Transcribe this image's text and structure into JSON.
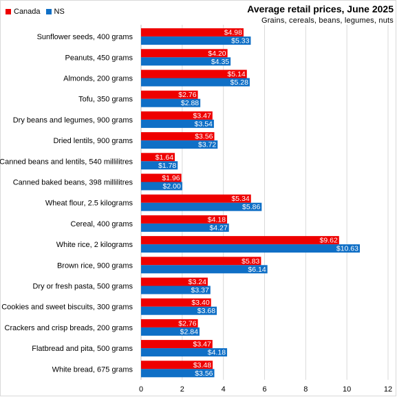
{
  "chart_data": {
    "type": "bar",
    "orientation": "horizontal",
    "title": "Average retail prices, June 2025",
    "subtitle": "Grains, cereals, beans, legumes, nuts",
    "categories": [
      "Sunflower seeds, 400 grams",
      "Peanuts, 450 grams",
      "Almonds, 200 grams",
      "Tofu, 350 grams",
      "Dry beans and legumes, 900 grams",
      "Dried lentils, 900 grams",
      "Canned beans and lentils, 540 millilitres",
      "Canned baked beans, 398 millilitres",
      "Wheat flour, 2.5 kilograms",
      "Cereal, 400 grams",
      "White rice, 2 kilograms",
      "Brown rice, 900 grams",
      "Dry or fresh pasta, 500 grams",
      "Cookies and sweet biscuits, 300 grams",
      "Crackers and crisp breads, 200 grams",
      "Flatbread and pita, 500 grams",
      "White bread, 675 grams"
    ],
    "series": [
      {
        "name": "Canada",
        "color": "#ee0000",
        "values": [
          4.98,
          4.2,
          5.14,
          2.76,
          3.47,
          3.56,
          1.64,
          1.96,
          5.34,
          4.18,
          9.62,
          5.83,
          3.24,
          3.4,
          2.76,
          3.47,
          3.48
        ],
        "labels": [
          "$4.98",
          "$4.20",
          "$5.14",
          "$2.76",
          "$3.47",
          "$3.56",
          "$1.64",
          "$1.96",
          "$5.34",
          "$4.18",
          "$9.62",
          "$5.83",
          "$3.24",
          "$3.40",
          "$2.76",
          "$3.47",
          "$3.48"
        ]
      },
      {
        "name": "NS",
        "color": "#0f6fc6",
        "values": [
          5.33,
          4.35,
          5.28,
          2.88,
          3.54,
          3.72,
          1.78,
          2.0,
          5.86,
          4.27,
          10.63,
          6.14,
          3.37,
          3.68,
          2.84,
          4.18,
          3.56
        ],
        "labels": [
          "$5.33",
          "$4.35",
          "$5.28",
          "$2.88",
          "$3.54",
          "$3.72",
          "$1.78",
          "$2.00",
          "$5.86",
          "$4.27",
          "$10.63",
          "$6.14",
          "$3.37",
          "$3.68",
          "$2.84",
          "$4.18",
          "$3.56"
        ]
      }
    ],
    "xlim": [
      0,
      12
    ],
    "xticks": [
      "0",
      "2",
      "4",
      "6",
      "8",
      "10",
      "12"
    ],
    "grid": "vertical",
    "legend": "top-left"
  }
}
